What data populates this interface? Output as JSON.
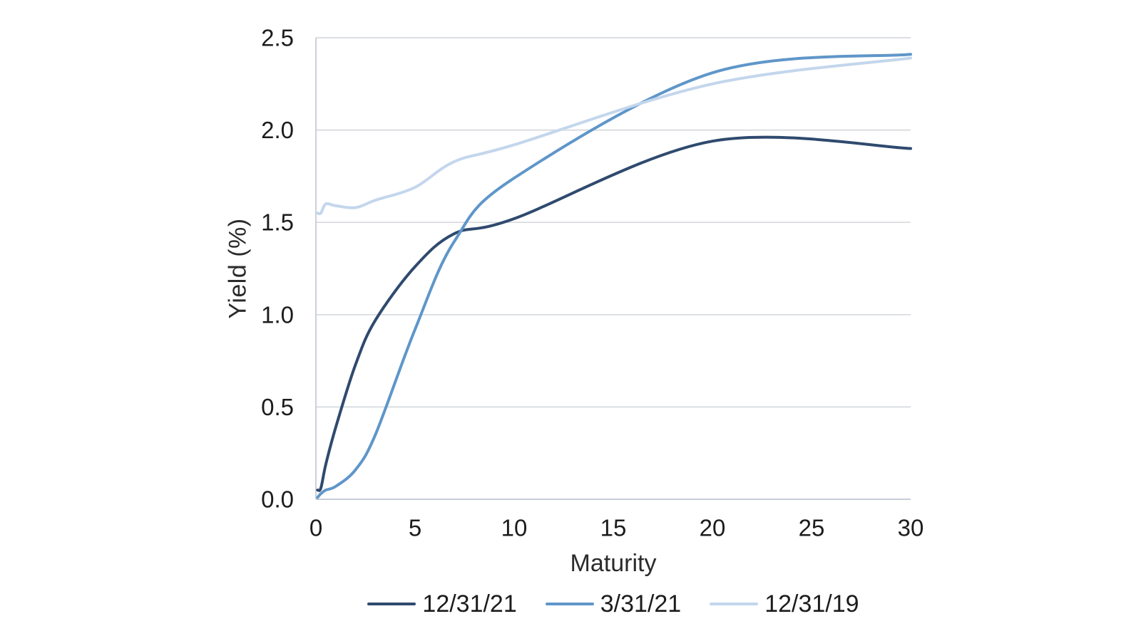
{
  "chart_data": {
    "type": "line",
    "title": "",
    "xlabel": "Maturity",
    "ylabel": "Yield (%)",
    "xlim": [
      0,
      30
    ],
    "ylim": [
      0,
      2.5
    ],
    "xticks": [
      "0",
      "5",
      "10",
      "15",
      "20",
      "25",
      "30"
    ],
    "yticks": [
      "0.0",
      "0.5",
      "1.0",
      "1.5",
      "2.0",
      "2.5"
    ],
    "grid": "horizontal gridlines only",
    "legend_position": "bottom center",
    "line_style": "smooth",
    "x": [
      0.083,
      0.25,
      0.5,
      1,
      2,
      3,
      5,
      7,
      10,
      20,
      30
    ],
    "series": [
      {
        "name": "12/31/21",
        "color": "#2F4A6E",
        "values": [
          0.05,
          0.06,
          0.19,
          0.39,
          0.73,
          0.97,
          1.26,
          1.44,
          1.52,
          1.94,
          1.9
        ]
      },
      {
        "name": "3/31/21",
        "color": "#5F96C9",
        "values": [
          0.01,
          0.03,
          0.05,
          0.07,
          0.16,
          0.35,
          0.92,
          1.4,
          1.74,
          2.31,
          2.41
        ]
      },
      {
        "name": "12/31/19",
        "color": "#C3D6EC",
        "values": [
          1.55,
          1.55,
          1.6,
          1.59,
          1.58,
          1.62,
          1.69,
          1.83,
          1.92,
          2.25,
          2.39
        ]
      }
    ],
    "colors": {
      "gridline": "#D6D9DE",
      "axis_line": "#C3CAD3",
      "tick_text": "#1c1c1c",
      "title_text": "#2b2b2b"
    }
  }
}
